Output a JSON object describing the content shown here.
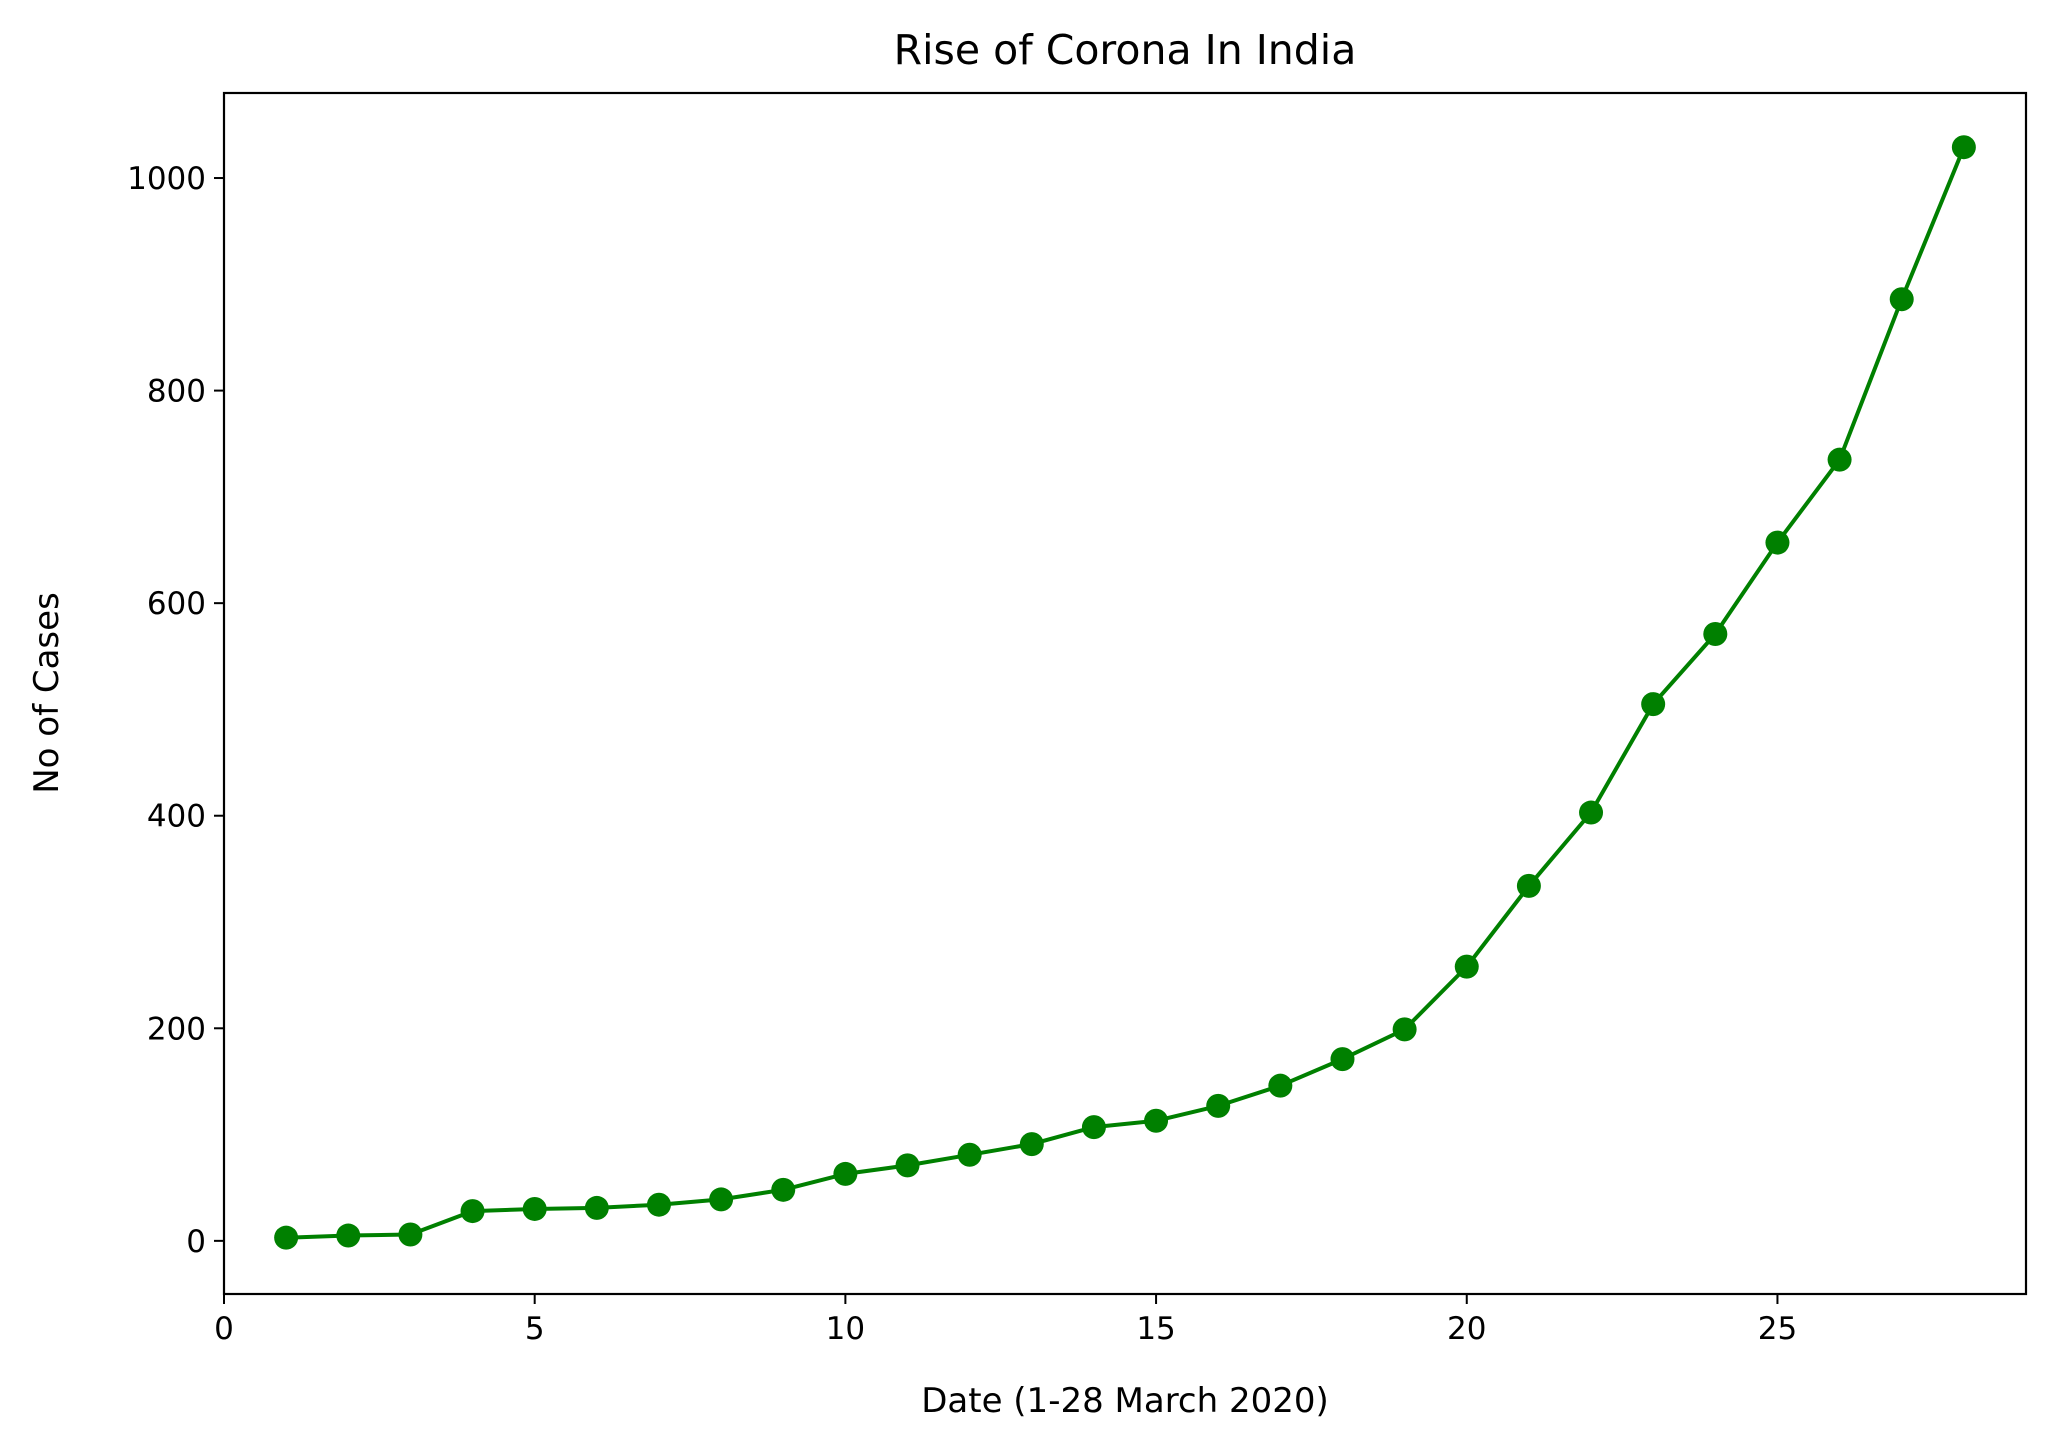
{
  "chart_data": {
    "type": "line",
    "title": "Rise of Corona In India",
    "xlabel": "Date (1-28 March 2020)",
    "ylabel": "No of Cases",
    "xlim": [
      0,
      29
    ],
    "ylim": [
      -50,
      1080
    ],
    "xticks": [
      0,
      5,
      10,
      15,
      20,
      25
    ],
    "yticks": [
      0,
      200,
      400,
      600,
      800,
      1000
    ],
    "grid": false,
    "legend": "none",
    "series": [
      {
        "color": "#008000",
        "marker": "circle",
        "x": [
          1,
          2,
          3,
          4,
          5,
          6,
          7,
          8,
          9,
          10,
          11,
          12,
          13,
          14,
          15,
          16,
          17,
          18,
          19,
          20,
          21,
          22,
          23,
          24,
          25,
          26,
          27,
          28
        ],
        "y": [
          3,
          5,
          6,
          28,
          30,
          31,
          34,
          39,
          48,
          63,
          71,
          81,
          91,
          107,
          113,
          127,
          146,
          171,
          199,
          258,
          334,
          403,
          505,
          571,
          657,
          735,
          886,
          1029
        ]
      }
    ]
  }
}
